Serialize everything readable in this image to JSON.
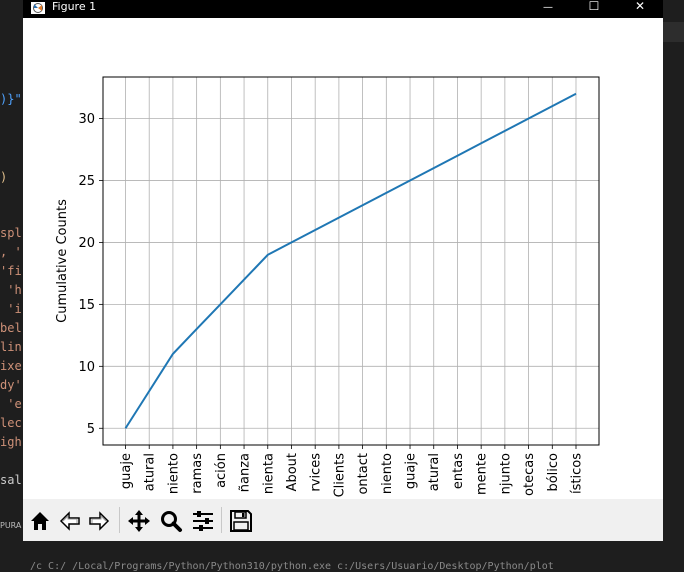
{
  "window": {
    "title": "Figure 1",
    "minimize_glyph": "—",
    "maximize_glyph": "☐",
    "close_glyph": "✕"
  },
  "background": {
    "code_fragments": [
      {
        "text": ")}\"",
        "color": "#4fa3ff"
      },
      {
        "text": ")",
        "color": "#e2c08d"
      },
      {
        "text": "spl",
        "color": "#ce9178"
      },
      {
        "text": ", '",
        "color": "#ce9178"
      },
      {
        "text": "'fi",
        "color": "#ce9178"
      },
      {
        "text": " 'h",
        "color": "#ce9178"
      },
      {
        "text": " 'i",
        "color": "#ce9178"
      },
      {
        "text": "bel",
        "color": "#ce9178"
      },
      {
        "text": "lin",
        "color": "#ce9178"
      },
      {
        "text": "ixe",
        "color": "#ce9178"
      },
      {
        "text": "dy'",
        "color": "#ce9178"
      },
      {
        "text": " 'e",
        "color": "#ce9178"
      },
      {
        "text": "lec",
        "color": "#ce9178"
      },
      {
        "text": "igh",
        "color": "#ce9178"
      },
      {
        "text": "sal",
        "color": "#cccccc"
      }
    ],
    "left_label": "PURA",
    "status_text": "/c  C:/  /Local/Programs/Python/Python310/python.exe  c:/Users/Usuario/Desktop/Python/plot"
  },
  "chart_data": {
    "type": "line",
    "ylabel": "Cumulative Counts",
    "xlabel": "",
    "title": "",
    "categories": [
      "guaje",
      "atural",
      "niento",
      "ramas",
      "ación",
      "ñanza",
      "nienta",
      "About",
      "rvices",
      "Clients",
      "ontact",
      "niento",
      "guaje",
      "atural",
      "entas",
      "mente",
      "njunto",
      "otecas",
      "bólico",
      "ísticos"
    ],
    "series": [
      {
        "values": [
          5,
          8,
          11,
          13,
          15,
          17,
          19,
          20,
          21,
          22,
          23,
          24,
          25,
          26,
          27,
          28,
          29,
          30,
          31,
          32
        ],
        "color": "#1f77b4"
      }
    ],
    "yticks": [
      5,
      10,
      15,
      20,
      25,
      30
    ],
    "ylim": [
      3.65,
      33.35
    ],
    "grid": true
  },
  "toolbar": {
    "home": "home-icon",
    "back": "back-arrow-icon",
    "forward": "forward-arrow-icon",
    "pan": "pan-icon",
    "zoom": "zoom-icon",
    "configure": "configure-subplots-icon",
    "save": "save-icon"
  }
}
